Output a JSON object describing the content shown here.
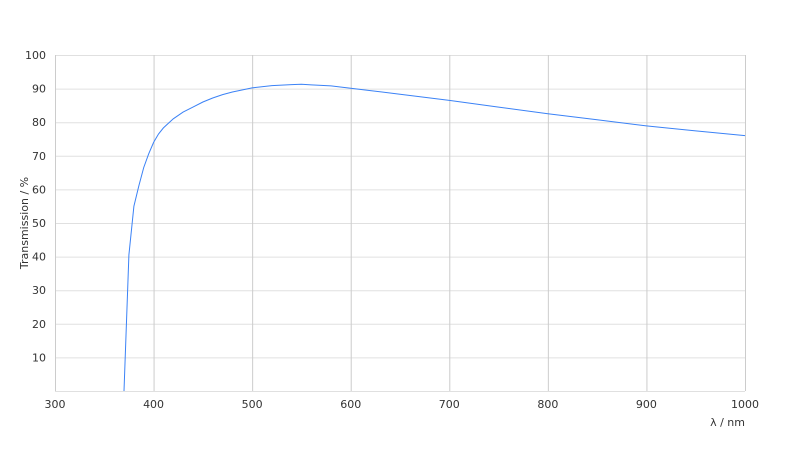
{
  "chart_data": {
    "type": "line",
    "title": "",
    "xlabel": "λ / nm",
    "ylabel": "Transmission / %",
    "xlim": [
      300,
      1000
    ],
    "ylim": [
      0,
      100
    ],
    "xticks": [
      300,
      400,
      500,
      600,
      700,
      800,
      900,
      1000
    ],
    "yticks": [
      10,
      20,
      30,
      40,
      50,
      60,
      70,
      80,
      90,
      100
    ],
    "grid": true,
    "line_color": "#3b82f6",
    "series": [
      {
        "x": [
          370,
          375,
          380,
          385,
          390,
          395,
          400,
          405,
          410,
          420,
          430,
          440,
          450,
          460,
          470,
          480,
          500,
          520,
          540,
          550,
          560,
          580,
          600,
          620,
          650,
          700,
          750,
          800,
          850,
          900,
          950,
          1000
        ],
        "y": [
          0,
          40.5,
          55,
          61,
          66.5,
          70.5,
          74,
          76.5,
          78.3,
          81,
          83,
          84.5,
          86,
          87.2,
          88.2,
          89,
          90.2,
          90.9,
          91.2,
          91.3,
          91.1,
          90.8,
          90.1,
          89.4,
          88.3,
          86.5,
          84.5,
          82.5,
          80.7,
          78.9,
          77.4,
          76
        ]
      }
    ]
  }
}
